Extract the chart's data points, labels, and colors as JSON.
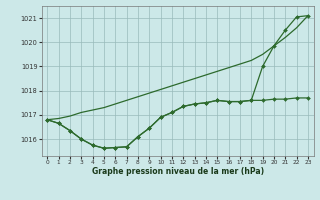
{
  "x": [
    0,
    1,
    2,
    3,
    4,
    5,
    6,
    7,
    8,
    9,
    10,
    11,
    12,
    13,
    14,
    15,
    16,
    17,
    18,
    19,
    20,
    21,
    22,
    23
  ],
  "line_smooth": [
    1016.8,
    1016.85,
    1016.95,
    1017.1,
    1017.2,
    1017.3,
    1017.45,
    1017.6,
    1017.75,
    1017.9,
    1018.05,
    1018.2,
    1018.35,
    1018.5,
    1018.65,
    1018.8,
    1018.95,
    1019.1,
    1019.25,
    1019.5,
    1019.85,
    1020.2,
    1020.6,
    1021.1
  ],
  "line_dip_high": [
    1016.8,
    1016.65,
    1016.35,
    1016.0,
    1015.75,
    1015.62,
    1015.65,
    1015.68,
    1016.1,
    1016.45,
    1016.9,
    1017.1,
    1017.35,
    1017.45,
    1017.5,
    1017.6,
    1017.55,
    1017.55,
    1017.6,
    1019.0,
    1019.85,
    1020.5,
    1021.05,
    1021.1
  ],
  "line_dip_low": [
    1016.8,
    1016.65,
    1016.35,
    1016.0,
    1015.75,
    1015.62,
    1015.65,
    1015.68,
    1016.1,
    1016.45,
    1016.9,
    1017.1,
    1017.35,
    1017.45,
    1017.5,
    1017.6,
    1017.55,
    1017.55,
    1017.6,
    1017.6,
    1017.65,
    1017.65,
    1017.7,
    1017.7
  ],
  "bg_color": "#cce8e8",
  "line_color": "#2d6a2d",
  "grid_color": "#99bbbb",
  "axis_label_color": "#1a3a1a",
  "xlabel": "Graphe pression niveau de la mer (hPa)",
  "ylim_min": 1015.3,
  "ylim_max": 1021.5,
  "yticks": [
    1016,
    1017,
    1018,
    1019,
    1020,
    1021
  ],
  "xticks": [
    0,
    1,
    2,
    3,
    4,
    5,
    6,
    7,
    8,
    9,
    10,
    11,
    12,
    13,
    14,
    15,
    16,
    17,
    18,
    19,
    20,
    21,
    22,
    23
  ]
}
